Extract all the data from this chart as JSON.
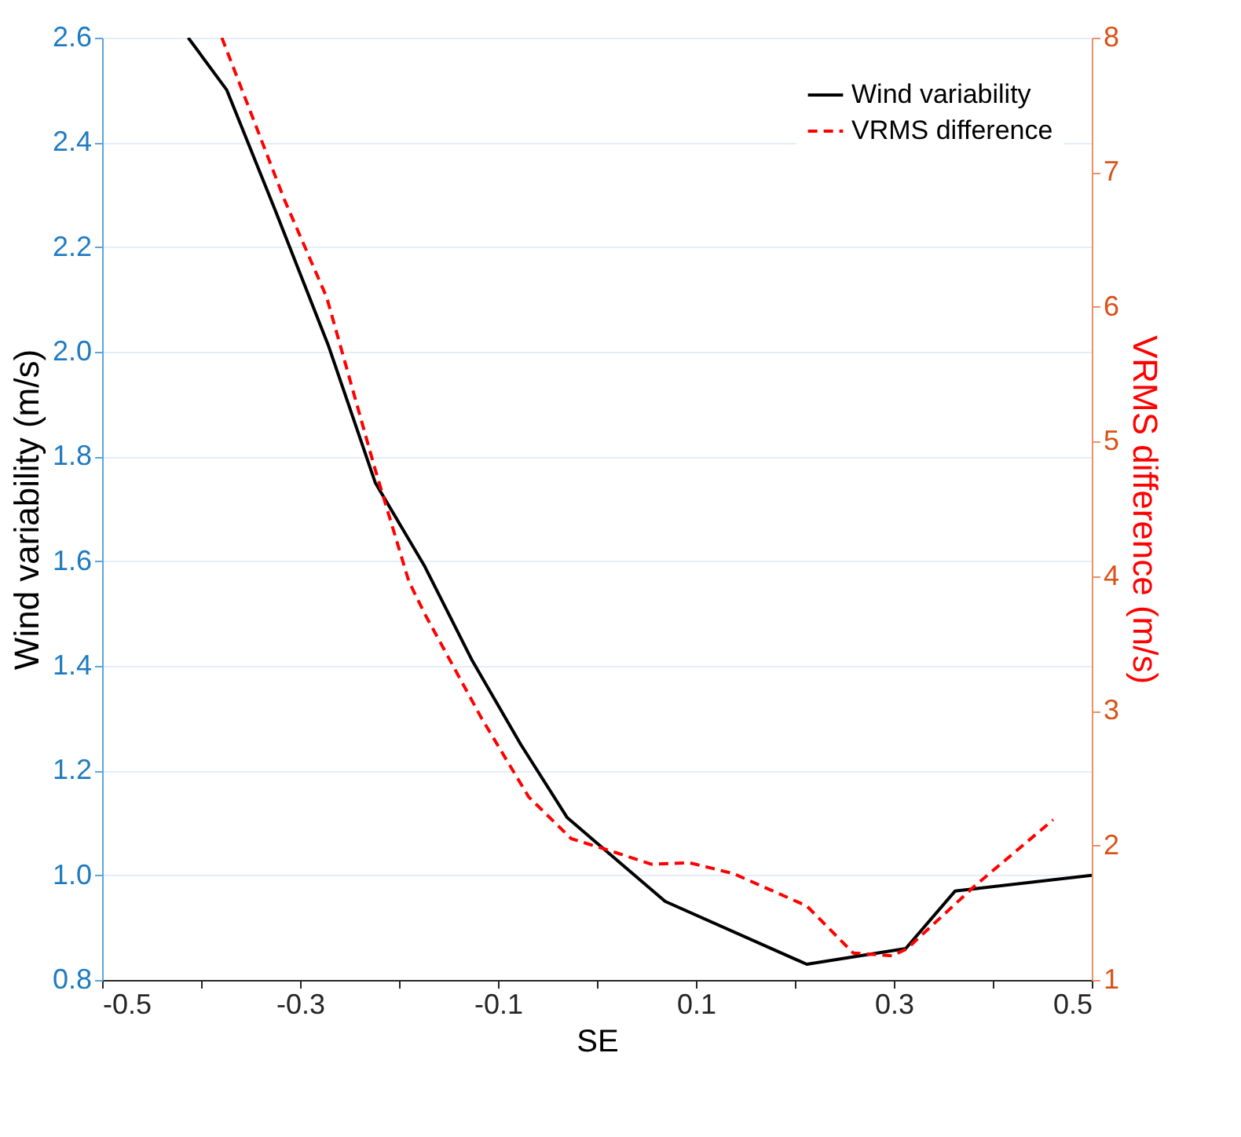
{
  "chart_data": {
    "type": "line",
    "xlabel": "SE",
    "ylabel": "Wind variability (m/s)",
    "y2label": "VRMS difference (m/s)",
    "xlim": [
      -0.5,
      0.5
    ],
    "xticks": [
      -0.5,
      {
        "value": -0.4,
        "label": null
      },
      -0.3,
      {
        "value": -0.2,
        "label": null
      },
      -0.1,
      {
        "value": 0.0,
        "label": null
      },
      0.1,
      {
        "value": 0.2,
        "label": null
      },
      0.3,
      {
        "value": 0.4,
        "label": null
      },
      0.5
    ],
    "ylim": [
      0.8,
      2.6
    ],
    "yticks": [
      {
        "value": 0.8,
        "label": "0.8"
      },
      {
        "value": 1,
        "label": "1.0"
      },
      {
        "value": 1.2,
        "label": "1.2"
      },
      {
        "value": 1.4,
        "label": "1.4"
      },
      {
        "value": 1.6,
        "label": "1.6"
      },
      {
        "value": 1.8,
        "label": "1.8"
      },
      {
        "value": 2,
        "label": "2.0"
      },
      {
        "value": 2.2,
        "label": "2.2"
      },
      {
        "value": 2.4,
        "label": "2.4"
      },
      {
        "value": 2.6,
        "label": "2.6"
      }
    ],
    "y2lim": [
      1,
      8
    ],
    "y2ticks": [
      1,
      2,
      3,
      4,
      5,
      6,
      7,
      8
    ],
    "grid": "y",
    "legend": "top right",
    "series": [
      {
        "name": "Wind variability",
        "color": "#000000",
        "line_style": "solid",
        "x": [
          -0.413,
          -0.374,
          -0.325,
          -0.271,
          -0.224,
          -0.174,
          -0.126,
          -0.077,
          -0.03,
          0.069,
          0.212,
          0.312,
          0.362,
          0.5
        ],
        "values": [
          2.6,
          2.5,
          2.27,
          2.01,
          1.75,
          1.59,
          1.41,
          1.25,
          1.11,
          0.95,
          0.83,
          0.86,
          0.97,
          1.0
        ]
      },
      {
        "name": "VRMS difference",
        "color": "#ff0000",
        "line_style": "dashed",
        "axis": "y2",
        "x": [
          -0.379,
          -0.316,
          -0.273,
          -0.224,
          -0.19,
          -0.174,
          -0.117,
          -0.069,
          -0.026,
          0.009,
          0.055,
          0.094,
          0.138,
          0.212,
          0.259,
          0.298,
          0.313,
          0.382,
          0.461
        ],
        "values": [
          8.0,
          6.8,
          6.07,
          4.79,
          3.96,
          3.72,
          2.95,
          2.36,
          2.05,
          1.97,
          1.86,
          1.87,
          1.79,
          1.55,
          1.2,
          1.18,
          1.23,
          1.7,
          2.19
        ]
      }
    ]
  }
}
